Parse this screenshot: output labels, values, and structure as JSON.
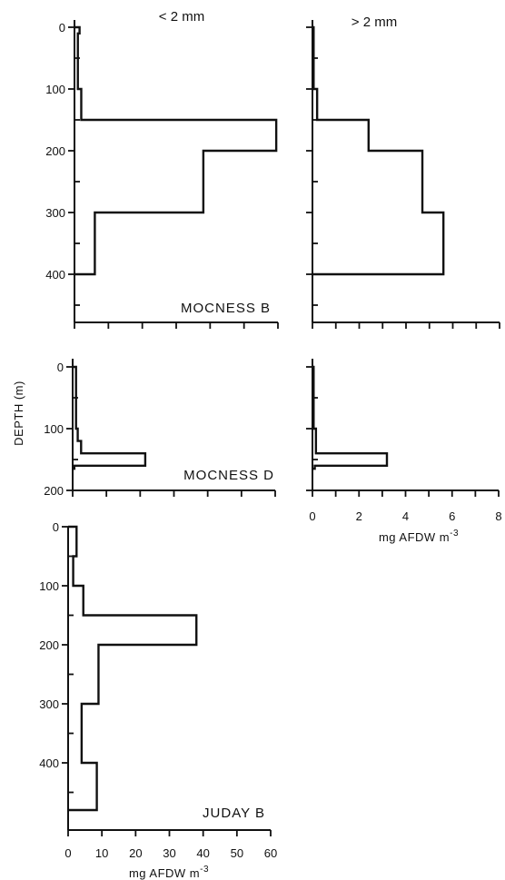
{
  "chart_data": {
    "type": "line",
    "y_axis_label": "DEPTH (m)",
    "column_titles": [
      "< 2 mm",
      "> 2 mm"
    ],
    "panels": [
      {
        "id": "mocness-b-small",
        "label": "MOCNESS B",
        "column_title": "< 2 mm",
        "xlim": [
          0,
          60
        ],
        "ylim": [
          0,
          480
        ],
        "x_ticks": [
          0,
          10,
          20,
          30,
          40,
          50,
          60
        ],
        "x_tick_labels_shown": false,
        "y_tick_labels": [
          "0",
          "100",
          "200",
          "300",
          "400"
        ],
        "y_tick_values": [
          0,
          100,
          200,
          300,
          400
        ],
        "steps": [
          {
            "from": 0,
            "to": 10,
            "value": 1.5
          },
          {
            "from": 10,
            "to": 100,
            "value": 1.0
          },
          {
            "from": 100,
            "to": 150,
            "value": 2.0
          },
          {
            "from": 150,
            "to": 200,
            "value": 59.5
          },
          {
            "from": 200,
            "to": 300,
            "value": 38.0
          },
          {
            "from": 300,
            "to": 400,
            "value": 6.0
          }
        ]
      },
      {
        "id": "mocness-b-large",
        "column_title": "> 2 mm",
        "xlim": [
          0,
          8
        ],
        "ylim": [
          0,
          480
        ],
        "x_ticks": [
          0,
          1,
          2,
          3,
          4,
          5,
          6,
          7,
          8
        ],
        "x_tick_labels_shown": false,
        "steps": [
          {
            "from": 0,
            "to": 100,
            "value": 0.05
          },
          {
            "from": 100,
            "to": 150,
            "value": 0.2
          },
          {
            "from": 150,
            "to": 200,
            "value": 2.4
          },
          {
            "from": 200,
            "to": 300,
            "value": 4.7
          },
          {
            "from": 300,
            "to": 400,
            "value": 5.6
          }
        ]
      },
      {
        "id": "mocness-d-small",
        "label": "MOCNESS D",
        "xlim": [
          0,
          60
        ],
        "ylim": [
          0,
          200
        ],
        "x_ticks": [
          0,
          10,
          20,
          30,
          40,
          50,
          60
        ],
        "x_tick_labels_shown": false,
        "y_tick_labels": [
          "0",
          "100",
          "200"
        ],
        "y_tick_values": [
          0,
          100,
          200
        ],
        "steps": [
          {
            "from": 0,
            "to": 100,
            "value": 1.0
          },
          {
            "from": 100,
            "to": 120,
            "value": 1.5
          },
          {
            "from": 120,
            "to": 140,
            "value": 2.5
          },
          {
            "from": 140,
            "to": 160,
            "value": 21.5
          },
          {
            "from": 160,
            "to": 165,
            "value": 0.5
          }
        ]
      },
      {
        "id": "mocness-d-large",
        "xlim": [
          0,
          8
        ],
        "ylim": [
          0,
          200
        ],
        "x_ticks": [
          0,
          1,
          2,
          3,
          4,
          5,
          6,
          7,
          8
        ],
        "x_tick_labels": [
          "0",
          "2",
          "4",
          "6",
          "8"
        ],
        "x_tick_label_values": [
          0,
          2,
          4,
          6,
          8
        ],
        "xlabel": "mg AFDW m",
        "xlabel_superscript": "-3",
        "steps": [
          {
            "from": 0,
            "to": 100,
            "value": 0.05
          },
          {
            "from": 100,
            "to": 140,
            "value": 0.15
          },
          {
            "from": 140,
            "to": 160,
            "value": 3.2
          },
          {
            "from": 160,
            "to": 165,
            "value": 0.1
          }
        ]
      },
      {
        "id": "juday-b-small",
        "label": "JUDAY B",
        "xlim": [
          0,
          60
        ],
        "ylim": [
          0,
          480
        ],
        "x_ticks": [
          0,
          10,
          20,
          30,
          40,
          50,
          60
        ],
        "x_tick_labels": [
          "0",
          "10",
          "20",
          "30",
          "40",
          "50",
          "60"
        ],
        "x_tick_label_values": [
          0,
          10,
          20,
          30,
          40,
          50,
          60
        ],
        "y_tick_labels": [
          "0",
          "100",
          "200",
          "300",
          "400"
        ],
        "y_tick_values": [
          0,
          100,
          200,
          300,
          400
        ],
        "xlabel": "mg AFDW m",
        "xlabel_superscript": "-3",
        "steps": [
          {
            "from": 0,
            "to": 50,
            "value": 2.5
          },
          {
            "from": 50,
            "to": 100,
            "value": 1.5
          },
          {
            "from": 100,
            "to": 150,
            "value": 4.5
          },
          {
            "from": 150,
            "to": 200,
            "value": 38.0
          },
          {
            "from": 200,
            "to": 300,
            "value": 9.0
          },
          {
            "from": 300,
            "to": 400,
            "value": 4.0
          },
          {
            "from": 400,
            "to": 480,
            "value": 8.5
          }
        ]
      }
    ]
  }
}
